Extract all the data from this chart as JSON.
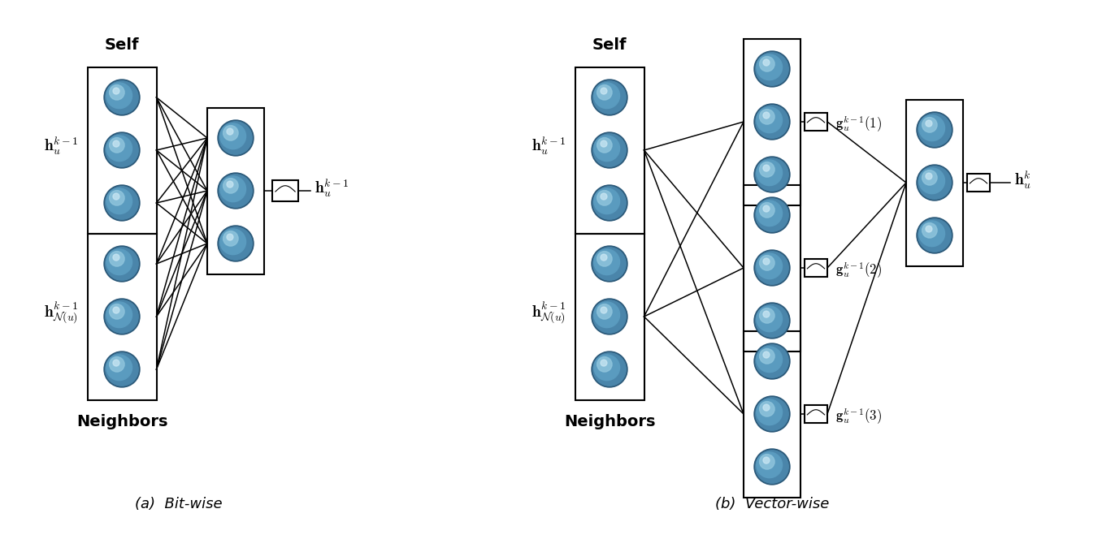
{
  "bg_color": "#ffffff",
  "fig_width": 13.72,
  "fig_height": 6.8,
  "left_panel": {
    "label_a": "(a)  Bit-wise",
    "self_label": "Self",
    "out_label": "$\\mathbf{h}_{u}^{k-1}$"
  },
  "right_panel": {
    "label_b": "(b)  Vector-wise",
    "self_label": "Self",
    "neigh_label": "Neighbors",
    "g1_label": "$\\mathbf{g}_{u}^{k-1}(1)$",
    "g2_label": "$\\mathbf{g}_{u}^{k-1}(2)$",
    "g3_label": "$\\mathbf{g}_{u}^{k-1}(3)$",
    "out_label": "$\\mathbf{h}_{u}^{k}$"
  },
  "node_face_color": "#5a93b5",
  "node_edge_color": "#2a5070",
  "node_highlight_color": "#9ecae1"
}
